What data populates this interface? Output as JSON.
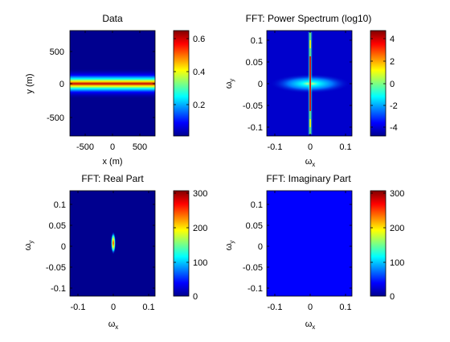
{
  "figure": {
    "background": "#ffffff",
    "colormap": "jet"
  },
  "chart_data": [
    {
      "type": "heatmap",
      "title": "Data",
      "xlabel": "x (m)",
      "ylabel": "y (m)",
      "xlim": [
        -800,
        800
      ],
      "ylim": [
        -800,
        800
      ],
      "xticks": [
        "-500",
        "0",
        "500"
      ],
      "yticks": [
        "500",
        "0",
        "-500"
      ],
      "colorbar": {
        "range": [
          0,
          0.65
        ],
        "ticks": [
          "0.6",
          "0.4",
          "0.2"
        ]
      },
      "content": "horizontal band centered at y = 0, peak ≈ 0.65"
    },
    {
      "type": "heatmap",
      "title": "FFT: Power Spectrum (log10)",
      "xlabel": "ωx",
      "ylabel": "ωy",
      "xlim": [
        -0.12,
        0.12
      ],
      "ylim": [
        -0.12,
        0.12
      ],
      "xticks": [
        "-0.1",
        "0",
        "0.1"
      ],
      "yticks": [
        "0.1",
        "0.05",
        "0",
        "-0.05",
        "-0.1"
      ],
      "colorbar": {
        "range": [
          -5,
          5
        ],
        "ticks": [
          "4",
          "2",
          "0",
          "-2",
          "-4"
        ]
      },
      "content": "vertical line at ωx = 0 with elliptical glow at origin"
    },
    {
      "type": "heatmap",
      "title": "FFT: Real Part",
      "xlabel": "ωx",
      "ylabel": "ωy",
      "xlim": [
        -0.12,
        0.12
      ],
      "ylim": [
        -0.12,
        0.12
      ],
      "xticks": [
        "-0.1",
        "0",
        "0.1"
      ],
      "yticks": [
        "0.1",
        "0.05",
        "0",
        "-0.05",
        "-0.1"
      ],
      "colorbar": {
        "range": [
          0,
          300
        ],
        "ticks": [
          "300",
          "200",
          "100",
          "0"
        ]
      },
      "content": "narrow vertical spike at origin, peak ≈ 300"
    },
    {
      "type": "heatmap",
      "title": "FFT: Imaginary Part",
      "xlabel": "ωx",
      "ylabel": "ωy",
      "xlim": [
        -0.12,
        0.12
      ],
      "ylim": [
        -0.12,
        0.12
      ],
      "xticks": [
        "-0.1",
        "0",
        "0.1"
      ],
      "yticks": [
        "0.1",
        "0.05",
        "0",
        "-0.05",
        "-0.1"
      ],
      "colorbar": {
        "range": [
          0,
          300
        ],
        "ticks": [
          "300",
          "200",
          "100",
          "0"
        ]
      },
      "content": "uniform (zero)"
    }
  ]
}
